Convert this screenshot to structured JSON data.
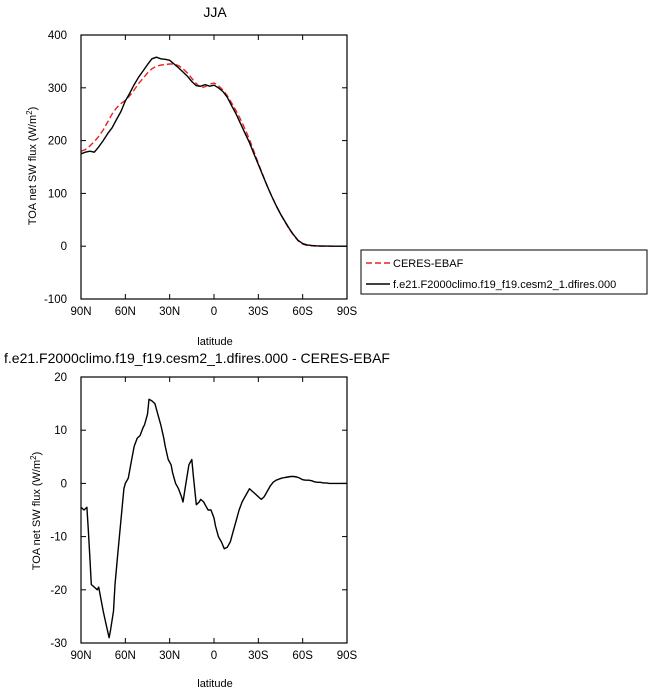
{
  "chart_data": [
    {
      "type": "line",
      "title": "JJA",
      "xlabel": "latitude",
      "ylabel_main": "TOA net SW flux (W/m",
      "ylabel_sup": "2",
      "ylabel_close": ")",
      "xlim": [
        90,
        -90
      ],
      "ylim": [
        -100,
        400
      ],
      "x_ticks": [
        90,
        60,
        30,
        0,
        -30,
        -60,
        -90
      ],
      "x_tick_labels": [
        "90N",
        "60N",
        "30N",
        "0",
        "30S",
        "60S",
        "90S"
      ],
      "y_ticks": [
        -100,
        0,
        100,
        200,
        300,
        400
      ],
      "y_tick_labels": [
        "-100",
        "0",
        "100",
        "200",
        "300",
        "400"
      ],
      "legend_position": "right",
      "series": [
        {
          "name": "CERES-EBAF",
          "color": "#e8231f",
          "dash": "dashed",
          "x": [
            90,
            87,
            84,
            81,
            78,
            75,
            72,
            69,
            66,
            63,
            60,
            57,
            54,
            51,
            48,
            45,
            42,
            39,
            36,
            33,
            30,
            27,
            24,
            21,
            18,
            15,
            12,
            9,
            6,
            3,
            0,
            -3,
            -6,
            -9,
            -12,
            -15,
            -18,
            -21,
            -24,
            -27,
            -30,
            -33,
            -36,
            -39,
            -42,
            -45,
            -48,
            -51,
            -54,
            -57,
            -60,
            -63,
            -66,
            -69,
            -72,
            -75,
            -78,
            -81,
            -84,
            -87,
            -90
          ],
          "y": [
            180,
            183,
            190,
            198,
            208,
            220,
            235,
            250,
            262,
            270,
            276,
            285,
            296,
            308,
            318,
            328,
            336,
            341,
            343,
            344,
            345,
            345,
            342,
            336,
            328,
            318,
            308,
            300,
            302,
            307,
            309,
            304,
            296,
            285,
            271,
            256,
            240,
            222,
            202,
            180,
            157,
            135,
            114,
            95,
            77,
            61,
            46,
            32,
            20,
            10,
            4,
            1.5,
            0.8,
            0.4,
            0.2,
            0.1,
            0,
            0,
            0,
            0,
            0
          ]
        },
        {
          "name": "f.e21.F2000climo.f19_f19.cesm2_1.dfires.000",
          "color": "#000000",
          "dash": "solid",
          "x": [
            90,
            87,
            84,
            81,
            78,
            75,
            72,
            69,
            66,
            63,
            60,
            57,
            54,
            51,
            48,
            45,
            42,
            39,
            36,
            33,
            30,
            27,
            24,
            21,
            18,
            15,
            12,
            9,
            6,
            3,
            0,
            -3,
            -6,
            -9,
            -12,
            -15,
            -18,
            -21,
            -24,
            -27,
            -30,
            -33,
            -36,
            -39,
            -42,
            -45,
            -48,
            -51,
            -54,
            -57,
            -60,
            -63,
            -66,
            -69,
            -72,
            -75,
            -78,
            -81,
            -84,
            -87,
            -90
          ],
          "y": [
            175,
            178,
            180,
            178,
            188,
            200,
            213,
            224,
            240,
            255,
            275,
            290,
            306,
            320,
            332,
            344,
            355,
            358,
            355,
            354,
            352,
            345,
            338,
            330,
            322,
            312,
            304,
            303,
            306,
            303,
            305,
            300,
            293,
            282,
            266,
            250,
            232,
            214,
            196,
            175,
            155,
            134,
            114,
            95,
            77,
            61,
            47,
            33,
            21,
            11,
            5,
            2.5,
            1.5,
            0.8,
            0.4,
            0.2,
            0.1,
            0,
            0,
            0,
            0
          ]
        }
      ]
    },
    {
      "type": "line",
      "title": "f.e21.F2000climo.f19_f19.cesm2_1.dfires.000 - CERES-EBAF",
      "xlabel": "latitude",
      "ylabel_main": "TOA net SW flux (W/m",
      "ylabel_sup": "2",
      "ylabel_close": ")",
      "xlim": [
        90,
        -90
      ],
      "ylim": [
        -30,
        20
      ],
      "x_ticks": [
        90,
        60,
        30,
        0,
        -30,
        -60,
        -90
      ],
      "x_tick_labels": [
        "90N",
        "60N",
        "30N",
        "0",
        "30S",
        "60S",
        "90S"
      ],
      "y_ticks": [
        -30,
        -20,
        -10,
        0,
        10,
        20
      ],
      "y_tick_labels": [
        "-30",
        "-20",
        "-10",
        "0",
        "10",
        "20"
      ],
      "series": [
        {
          "color": "#000000",
          "dash": "solid",
          "x": [
            90,
            88,
            86,
            85,
            84,
            83,
            81,
            79,
            78,
            77,
            75,
            73,
            71,
            70,
            68,
            67,
            65,
            63,
            61,
            60,
            58,
            56,
            54,
            52,
            50,
            48,
            47,
            45,
            44,
            42,
            40,
            38,
            36,
            34,
            33,
            31,
            29,
            28,
            26,
            24,
            22,
            21,
            19,
            17,
            15,
            14,
            12,
            10,
            9,
            7,
            6,
            4,
            2,
            0,
            -1,
            -3,
            -5,
            -7,
            -9,
            -11,
            -13,
            -15,
            -17,
            -19,
            -21,
            -23,
            -24,
            -26,
            -28,
            -30,
            -32,
            -34,
            -36,
            -38,
            -40,
            -42,
            -44,
            -46,
            -48,
            -50,
            -52,
            -54,
            -56,
            -58,
            -60,
            -62,
            -64,
            -66,
            -68,
            -70,
            -72,
            -74,
            -76,
            -78,
            -80,
            -82,
            -84,
            -86,
            -88,
            -90
          ],
          "y": [
            -4.5,
            -5,
            -4.5,
            -9,
            -14,
            -19,
            -19.5,
            -20,
            -19.5,
            -21,
            -24,
            -26.5,
            -29,
            -27.5,
            -24,
            -19,
            -13,
            -7,
            -1,
            0,
            1,
            4,
            7,
            8.5,
            9,
            10.5,
            11,
            13,
            15.8,
            15.5,
            15,
            13,
            11,
            8.5,
            7,
            4.5,
            3.5,
            2,
            0,
            -1,
            -2.5,
            -3.5,
            0,
            3.5,
            4.5,
            1.5,
            -4,
            -3.5,
            -3,
            -3.5,
            -4,
            -5,
            -5,
            -6.5,
            -8,
            -10,
            -11,
            -12.3,
            -12,
            -11,
            -9,
            -7,
            -5,
            -3.5,
            -2.5,
            -1.5,
            -1,
            -1.5,
            -2,
            -2.5,
            -3,
            -2.5,
            -1.5,
            -0.5,
            0.2,
            0.6,
            0.8,
            1,
            1.1,
            1.2,
            1.3,
            1.3,
            1.2,
            1,
            0.7,
            0.6,
            0.6,
            0.5,
            0.3,
            0.2,
            0.2,
            0.1,
            0.1,
            0,
            0,
            0,
            0,
            0,
            0,
            0
          ]
        }
      ]
    }
  ]
}
